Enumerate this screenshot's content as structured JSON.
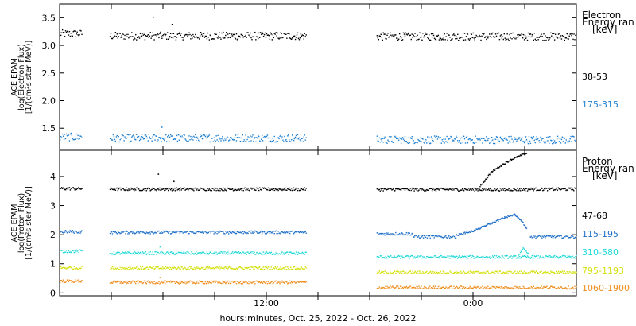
{
  "chart_data": [
    {
      "type": "scatter",
      "panel": "electron",
      "ylabel_lines": [
        "ACE EPAM",
        "log(Electron Flux)",
        "[1/(cm²s ster MeV)]"
      ],
      "ylim": [
        1.1,
        3.75
      ],
      "yticks": [
        1.5,
        2.0,
        2.5,
        3.0,
        3.5
      ],
      "ytick_labels": [
        "1.5",
        "2.0",
        "2.5",
        "3.0",
        "3.5"
      ],
      "legend_title_lines": [
        "Electron",
        "Energy ran",
        "[keV]"
      ],
      "series": [
        {
          "name": "38-53",
          "color": "#000000",
          "segments": [
            {
              "x": [
                0.0,
                1.3
              ],
              "y": 3.22
            },
            {
              "x": [
                2.9,
                14.3
              ],
              "y": 3.18
            },
            {
              "x": [
                18.4,
                30.0
              ],
              "y": 3.17
            }
          ],
          "outliers": [
            [
              5.4,
              3.52
            ],
            [
              6.5,
              3.39
            ]
          ]
        },
        {
          "name": "175-315",
          "color": "#1e7fd0",
          "segments": [
            {
              "x": [
                0.0,
                1.3
              ],
              "y": 1.35
            },
            {
              "x": [
                2.9,
                14.3
              ],
              "y": 1.33
            },
            {
              "x": [
                18.4,
                30.0
              ],
              "y": 1.3
            }
          ],
          "outliers": [
            [
              5.9,
              1.53
            ]
          ]
        }
      ]
    },
    {
      "type": "scatter",
      "panel": "proton",
      "ylabel_lines": [
        "ACE EPAM",
        "log(Proton Flux)",
        "[1/(cm²s ster MeV)]"
      ],
      "ylim": [
        -0.1,
        4.9
      ],
      "yticks": [
        0,
        1,
        2,
        3,
        4
      ],
      "ytick_labels": [
        "0",
        "1",
        "2",
        "3",
        "4"
      ],
      "legend_title_lines": [
        "Proton",
        "Energy ran",
        "[keV]"
      ],
      "series": [
        {
          "name": "47-68",
          "color": "#000000",
          "segments": [
            {
              "x": [
                0.0,
                1.3
              ],
              "y": 3.6
            },
            {
              "x": [
                2.9,
                14.3
              ],
              "y": 3.58
            },
            {
              "x": [
                18.4,
                27.3
              ],
              "y": 3.57
            },
            {
              "x": [
                27.3,
                30.0
              ],
              "y": 3.58
            }
          ],
          "bump": [
            [
              24.3,
              3.6
            ],
            [
              25.0,
              4.15
            ],
            [
              25.6,
              4.4
            ],
            [
              26.2,
              4.6
            ],
            [
              26.8,
              4.75
            ],
            [
              27.1,
              4.82
            ]
          ],
          "outliers": [
            [
              5.7,
              4.1
            ],
            [
              6.6,
              3.85
            ]
          ]
        },
        {
          "name": "115-195",
          "color": "#1e6fc8",
          "segments": [
            {
              "x": [
                0.0,
                1.3
              ],
              "y": 2.12
            },
            {
              "x": [
                2.9,
                14.3
              ],
              "y": 2.1
            },
            {
              "x": [
                18.4,
                20.5
              ],
              "y": 2.05
            },
            {
              "x": [
                20.5,
                23.0
              ],
              "y": 1.95
            },
            {
              "x": [
                27.3,
                30.0
              ],
              "y": 1.95
            }
          ],
          "bump": [
            [
              23.0,
              2.0
            ],
            [
              24.0,
              2.15
            ],
            [
              25.0,
              2.4
            ],
            [
              25.8,
              2.6
            ],
            [
              26.4,
              2.7
            ],
            [
              26.8,
              2.5
            ],
            [
              27.1,
              2.2
            ]
          ],
          "outliers": []
        },
        {
          "name": "310-580",
          "color": "#22d8d8",
          "segments": [
            {
              "x": [
                0.0,
                1.3
              ],
              "y": 1.45
            },
            {
              "x": [
                2.9,
                14.3
              ],
              "y": 1.38
            },
            {
              "x": [
                18.4,
                30.0
              ],
              "y": 1.25
            }
          ],
          "bump": [
            [
              26.6,
              1.3
            ],
            [
              26.9,
              1.55
            ],
            [
              27.2,
              1.35
            ]
          ],
          "outliers": [
            [
              5.8,
              1.6
            ]
          ]
        },
        {
          "name": "795-1193",
          "color": "#d4e00a",
          "segments": [
            {
              "x": [
                0.0,
                1.3
              ],
              "y": 0.88
            },
            {
              "x": [
                2.9,
                14.3
              ],
              "y": 0.87
            },
            {
              "x": [
                18.4,
                30.0
              ],
              "y": 0.72
            }
          ],
          "outliers": []
        },
        {
          "name": "1060-1900",
          "color": "#f08c1a",
          "segments": [
            {
              "x": [
                0.0,
                1.3
              ],
              "y": 0.42
            },
            {
              "x": [
                2.9,
                14.3
              ],
              "y": 0.38
            },
            {
              "x": [
                18.4,
                30.0
              ],
              "y": 0.2
            }
          ],
          "outliers": [
            [
              5.8,
              0.55
            ]
          ]
        }
      ]
    }
  ],
  "x_axis": {
    "range_hours": [
      0,
      30
    ],
    "tick_hours": [
      3,
      6,
      9,
      12,
      15,
      18,
      21,
      24,
      27
    ],
    "labeled_ticks": [
      {
        "hour": 12,
        "label": "12:00"
      },
      {
        "hour": 24,
        "label": "0:00"
      }
    ],
    "xlabel": "hours:minutes, Oct. 25, 2022 - Oct. 26, 2022"
  }
}
